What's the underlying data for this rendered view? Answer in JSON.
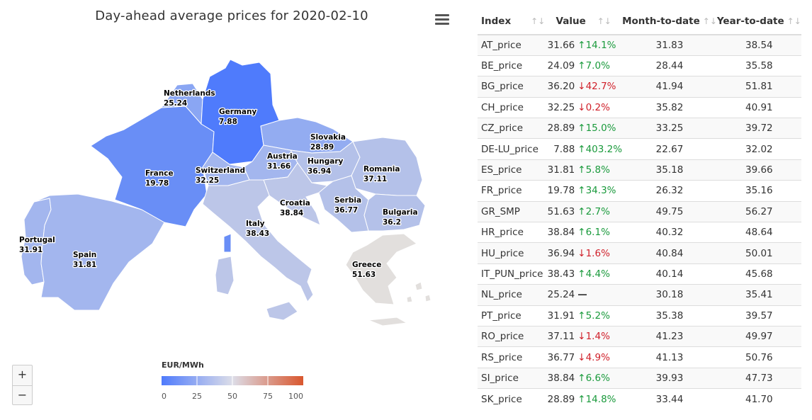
{
  "title": "Day-ahead average prices for 2020-02-10",
  "legend": {
    "title": "EUR/MWh",
    "ticks": [
      0,
      25,
      50,
      75,
      100
    ],
    "colors": [
      "#4f7bfc",
      "#dcdde8",
      "#d9572e"
    ]
  },
  "zoom": {
    "in_label": "+",
    "out_label": "−"
  },
  "map_labels": [
    {
      "name": "Netherlands",
      "value": "25.24"
    },
    {
      "name": "Germany",
      "value": "7.88"
    },
    {
      "name": "Slovakia",
      "value": "28.89"
    },
    {
      "name": "Austria",
      "value": "31.66"
    },
    {
      "name": "Hungary",
      "value": "36.94"
    },
    {
      "name": "Romania",
      "value": "37.11"
    },
    {
      "name": "France",
      "value": "19.78"
    },
    {
      "name": "Switzerland",
      "value": "32.25"
    },
    {
      "name": "Croatia",
      "value": "38.84"
    },
    {
      "name": "Serbia",
      "value": "36.77"
    },
    {
      "name": "Bulgaria",
      "value": "36.2"
    },
    {
      "name": "Italy",
      "value": "38.43"
    },
    {
      "name": "Portugal",
      "value": "31.91"
    },
    {
      "name": "Spain",
      "value": "31.81"
    },
    {
      "name": "Greece",
      "value": "51.63"
    }
  ],
  "table": {
    "headers": [
      "Index",
      "Value",
      "Month-to-date",
      "Year-to-date"
    ],
    "sort_icon": "↑↓",
    "rows": [
      {
        "index": "AT_price",
        "value": "31.66",
        "change": "14.1%",
        "dir": "up",
        "mtd": "31.83",
        "ytd": "38.54"
      },
      {
        "index": "BE_price",
        "value": "24.09",
        "change": "7.0%",
        "dir": "up",
        "mtd": "28.44",
        "ytd": "35.58"
      },
      {
        "index": "BG_price",
        "value": "36.20",
        "change": "42.7%",
        "dir": "down",
        "mtd": "41.94",
        "ytd": "51.81"
      },
      {
        "index": "CH_price",
        "value": "32.25",
        "change": "0.2%",
        "dir": "down",
        "mtd": "35.82",
        "ytd": "40.91"
      },
      {
        "index": "CZ_price",
        "value": "28.89",
        "change": "15.0%",
        "dir": "up",
        "mtd": "33.25",
        "ytd": "39.72"
      },
      {
        "index": "DE-LU_price",
        "value": "7.88",
        "change": "403.2%",
        "dir": "up",
        "mtd": "22.67",
        "ytd": "32.02"
      },
      {
        "index": "ES_price",
        "value": "31.81",
        "change": "5.8%",
        "dir": "up",
        "mtd": "35.18",
        "ytd": "39.66"
      },
      {
        "index": "FR_price",
        "value": "19.78",
        "change": "34.3%",
        "dir": "up",
        "mtd": "26.32",
        "ytd": "35.16"
      },
      {
        "index": "GR_SMP",
        "value": "51.63",
        "change": "2.7%",
        "dir": "up",
        "mtd": "49.75",
        "ytd": "56.27"
      },
      {
        "index": "HR_price",
        "value": "38.84",
        "change": "6.1%",
        "dir": "up",
        "mtd": "40.32",
        "ytd": "48.64"
      },
      {
        "index": "HU_price",
        "value": "36.94",
        "change": "1.6%",
        "dir": "down",
        "mtd": "40.84",
        "ytd": "50.01"
      },
      {
        "index": "IT_PUN_price",
        "value": "38.43",
        "change": "4.4%",
        "dir": "up",
        "mtd": "40.14",
        "ytd": "45.68"
      },
      {
        "index": "NL_price",
        "value": "25.24",
        "change": "",
        "dir": "flat",
        "mtd": "30.18",
        "ytd": "35.41"
      },
      {
        "index": "PT_price",
        "value": "31.91",
        "change": "5.2%",
        "dir": "up",
        "mtd": "35.38",
        "ytd": "39.57"
      },
      {
        "index": "RO_price",
        "value": "37.11",
        "change": "1.4%",
        "dir": "down",
        "mtd": "41.23",
        "ytd": "49.97"
      },
      {
        "index": "RS_price",
        "value": "36.77",
        "change": "4.9%",
        "dir": "down",
        "mtd": "41.13",
        "ytd": "50.76"
      },
      {
        "index": "SI_price",
        "value": "38.84",
        "change": "6.6%",
        "dir": "up",
        "mtd": "39.93",
        "ytd": "47.73"
      },
      {
        "index": "SK_price",
        "value": "28.89",
        "change": "14.8%",
        "dir": "up",
        "mtd": "33.44",
        "ytd": "41.70"
      }
    ]
  }
}
